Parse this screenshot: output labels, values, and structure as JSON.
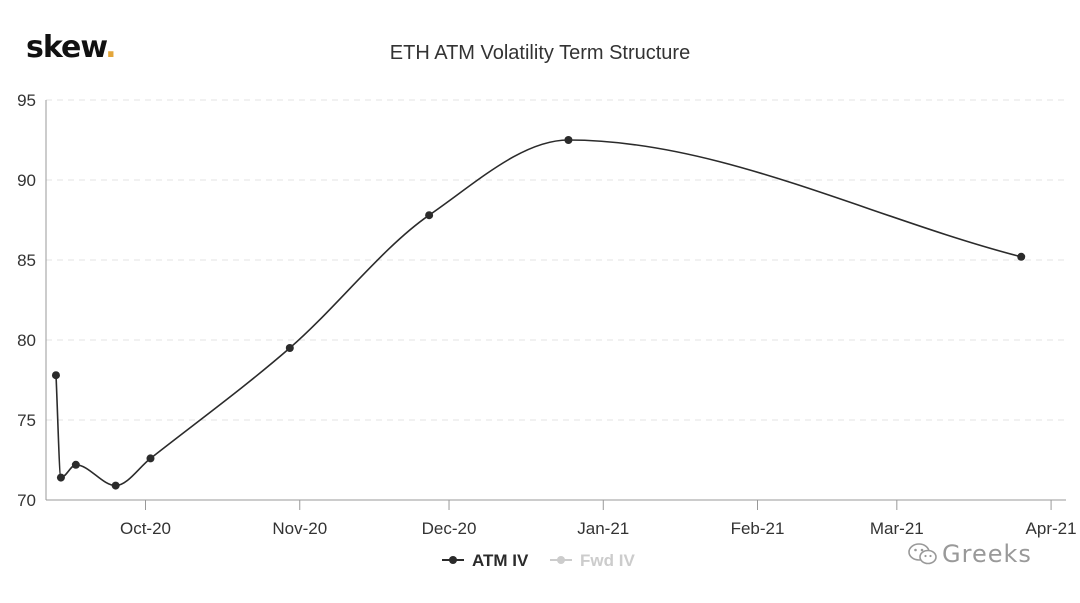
{
  "logo": {
    "text": "skew",
    "dot": "."
  },
  "watermark": {
    "text": "Greeks",
    "icon": "wechat-icon"
  },
  "colors": {
    "line": "#2b2b2b",
    "grid": "#e3e3e3",
    "axis": "#999999",
    "legend_inactive": "#cccccc",
    "brand_dot": "#e3a63b"
  },
  "chart_data": {
    "type": "line",
    "title": "ETH ATM Volatility Term Structure",
    "xlabel": "",
    "ylabel": "",
    "ylim": [
      70,
      95
    ],
    "yticks": [
      70,
      75,
      80,
      85,
      90,
      95
    ],
    "xlim": [
      "2020-09-11",
      "2021-04-04"
    ],
    "xticks": [
      {
        "label": "Oct-20",
        "date": "2020-10-01"
      },
      {
        "label": "Nov-20",
        "date": "2020-11-01"
      },
      {
        "label": "Dec-20",
        "date": "2020-12-01"
      },
      {
        "label": "Jan-21",
        "date": "2021-01-01"
      },
      {
        "label": "Feb-21",
        "date": "2021-02-01"
      },
      {
        "label": "Mar-21",
        "date": "2021-03-01"
      },
      {
        "label": "Apr-21",
        "date": "2021-04-01"
      }
    ],
    "grid": "horizontal",
    "legend_position": "bottom",
    "series": [
      {
        "name": "ATM IV",
        "active": true,
        "points": [
          {
            "x": "2020-09-13",
            "y": 77.8
          },
          {
            "x": "2020-09-14",
            "y": 71.4
          },
          {
            "x": "2020-09-17",
            "y": 72.2
          },
          {
            "x": "2020-09-25",
            "y": 70.9
          },
          {
            "x": "2020-10-02",
            "y": 72.6
          },
          {
            "x": "2020-10-30",
            "y": 79.5
          },
          {
            "x": "2020-11-27",
            "y": 87.8
          },
          {
            "x": "2020-12-25",
            "y": 92.5
          },
          {
            "x": "2021-03-26",
            "y": 85.2
          }
        ]
      },
      {
        "name": "Fwd IV",
        "active": false,
        "points": []
      }
    ]
  }
}
